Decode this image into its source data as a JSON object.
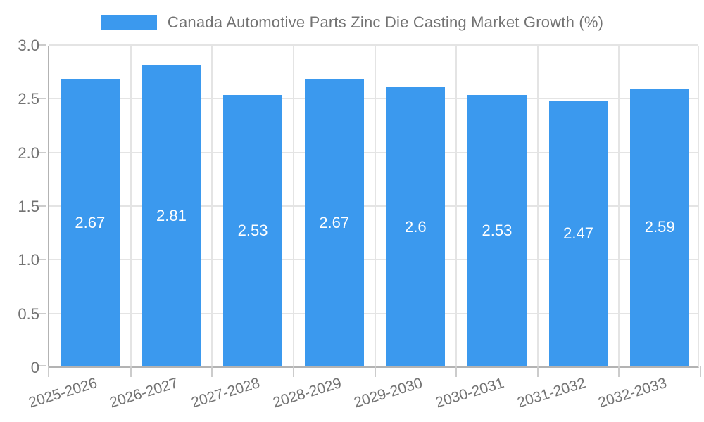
{
  "chart_data": {
    "type": "bar",
    "title": "Canada Automotive Parts Zinc Die Casting Market Growth (%)",
    "categories": [
      "2025-2026",
      "2026-2027",
      "2027-2028",
      "2028-2029",
      "2029-2030",
      "2030-2031",
      "2031-2032",
      "2032-2033"
    ],
    "values": [
      2.67,
      2.81,
      2.53,
      2.67,
      2.6,
      2.53,
      2.47,
      2.59
    ],
    "bar_labels": [
      "2.67",
      "2.81",
      "2.53",
      "2.67",
      "2.6",
      "2.53",
      "2.47",
      "2.59"
    ],
    "xlabel": "",
    "ylabel": "",
    "ylim": [
      0,
      3.0
    ],
    "grid_step": 0.5,
    "y_tick_labels": [
      "0",
      "0.5",
      "1.0",
      "1.5",
      "2.0",
      "2.5",
      "3.0"
    ],
    "grid": true,
    "legend_position": "top",
    "colors": {
      "bar": "#3b99ee",
      "grid": "#e4e4e4",
      "axis": "#b3b3b3",
      "tick": "#cccccc",
      "text": "#737373",
      "value_label": "#ffffff"
    }
  }
}
